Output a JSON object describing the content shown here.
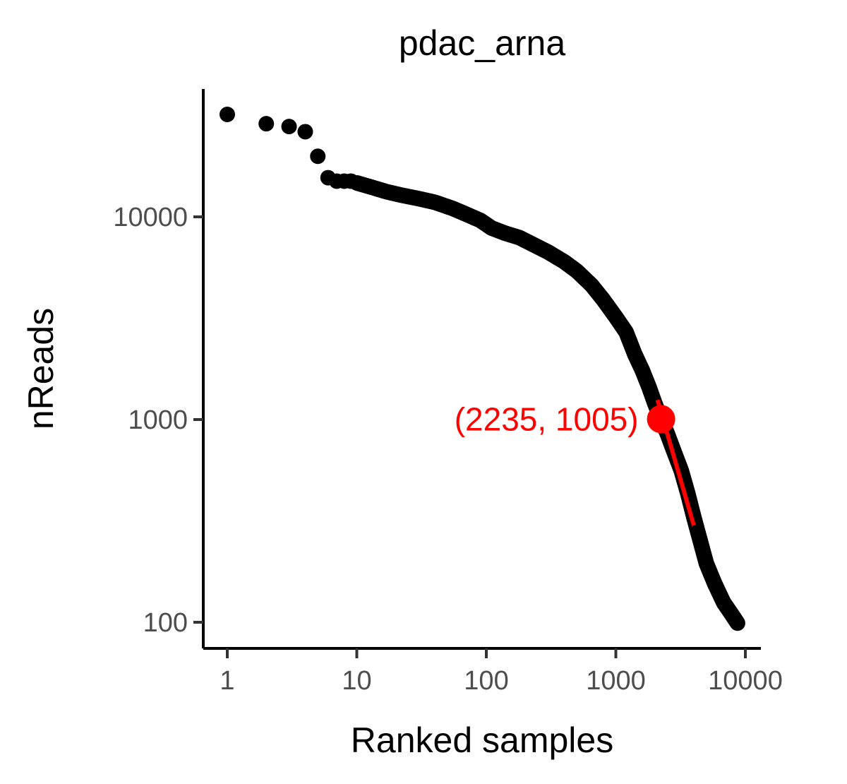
{
  "chart_data": {
    "type": "scatter",
    "title": "pdac_arna",
    "xlabel": "Ranked samples",
    "ylabel": "nReads",
    "x_scale": "log10",
    "y_scale": "log10",
    "xlim": [
      0.8,
      11000
    ],
    "ylim": [
      75,
      50000
    ],
    "x_ticks": [
      1,
      10,
      100,
      1000,
      10000
    ],
    "x_tick_labels": [
      "1",
      "10",
      "100",
      "1000",
      "10000"
    ],
    "y_ticks": [
      100,
      1000,
      10000
    ],
    "y_tick_labels": [
      "100",
      "1000",
      "10000"
    ],
    "grid": false,
    "legend": "none",
    "series": [
      {
        "color": "#000000",
        "points": [
          {
            "x": 1,
            "y": 32000
          },
          {
            "x": 2,
            "y": 28800
          },
          {
            "x": 3,
            "y": 27900
          },
          {
            "x": 4,
            "y": 26300
          },
          {
            "x": 5,
            "y": 19900
          },
          {
            "x": 6,
            "y": 15600
          },
          {
            "x": 7,
            "y": 15000
          },
          {
            "x": 8,
            "y": 15000
          },
          {
            "x": 9,
            "y": 15000
          }
        ],
        "curve": [
          [
            10,
            14700
          ],
          [
            13,
            14000
          ],
          [
            17,
            13300
          ],
          [
            22,
            12800
          ],
          [
            30,
            12300
          ],
          [
            40,
            11800
          ],
          [
            55,
            11000
          ],
          [
            70,
            10300
          ],
          [
            90,
            9600
          ],
          [
            110,
            8800
          ],
          [
            140,
            8300
          ],
          [
            180,
            7900
          ],
          [
            230,
            7300
          ],
          [
            300,
            6700
          ],
          [
            400,
            6000
          ],
          [
            500,
            5400
          ],
          [
            650,
            4600
          ],
          [
            800,
            3900
          ],
          [
            1000,
            3200
          ],
          [
            1200,
            2700
          ],
          [
            1400,
            2100
          ],
          [
            1600,
            1750
          ],
          [
            1800,
            1450
          ],
          [
            2000,
            1200
          ],
          [
            2235,
            1005
          ],
          [
            2500,
            850
          ],
          [
            2800,
            700
          ],
          [
            3200,
            560
          ],
          [
            3600,
            430
          ],
          [
            4000,
            330
          ],
          [
            4500,
            250
          ],
          [
            5000,
            195
          ],
          [
            5800,
            155
          ],
          [
            6800,
            125
          ],
          [
            7800,
            110
          ],
          [
            8700,
            99
          ]
        ]
      }
    ],
    "annotation": {
      "label": "(2235, 1005)",
      "point": {
        "x": 2235,
        "y": 1005
      },
      "color": "#ff0000",
      "fit_line": [
        [
          2100,
          1250
        ],
        [
          4000,
          300
        ]
      ]
    }
  }
}
